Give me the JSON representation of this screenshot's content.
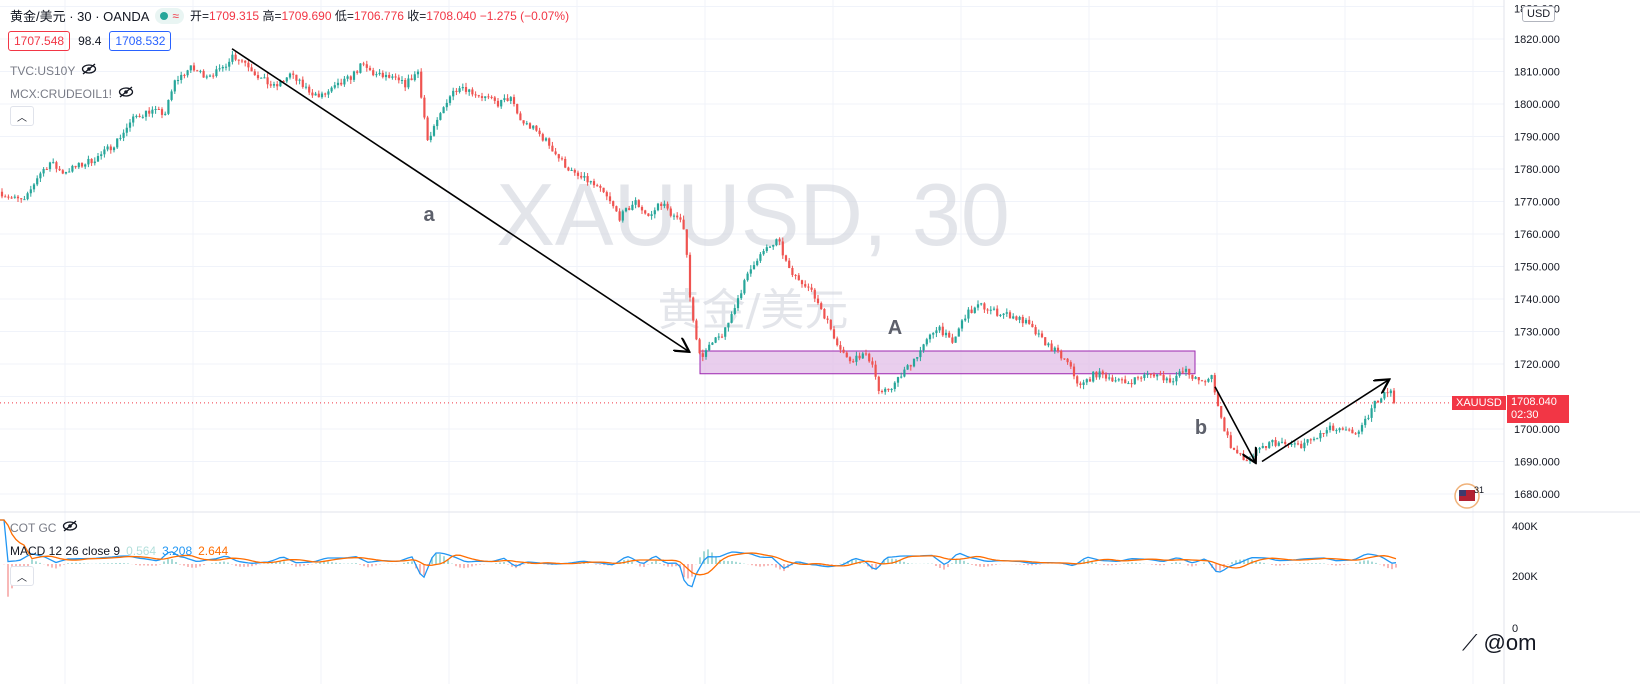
{
  "legend": {
    "symbol": "黄金/美元 · 30 · OANDA",
    "pill_glyph": "≈",
    "o_label": "开=",
    "o_value": "1709.315",
    "h_label": "高=",
    "h_value": "1709.690",
    "l_label": "低=",
    "l_value": "1706.776",
    "c_label": "收=",
    "c_value": "1708.040",
    "change": "−1.275 (−0.07%)"
  },
  "bid": "1707.548",
  "spread": "98.4",
  "ask": "1708.532",
  "indicators": [
    "TVC:US10Y",
    "MCX:CRUDEOIL1!"
  ],
  "currency": "USD",
  "price_axis": {
    "ticks": [
      "1820.000",
      "1810.000",
      "1800.000",
      "1790.000",
      "1780.000",
      "1770.000",
      "1760.000",
      "1750.000",
      "1740.000",
      "1730.000",
      "1720.000",
      "1700.000",
      "1690.000",
      "1680.000"
    ],
    "top_partial": "1830.000"
  },
  "last_price": {
    "symbol": "XAUUSD",
    "value": "1708.040",
    "countdown": "02:30"
  },
  "watermark": {
    "main": "XAUUSD, 30",
    "sub": "黄金/美元"
  },
  "annotations": {
    "a": "a",
    "A": "A",
    "b": "b"
  },
  "lower_pane": {
    "cot": "COT GC",
    "macd_label": "MACD 12 26 close 9",
    "macd_v1": "0.564",
    "macd_v2": "3.208",
    "macd_v3": "2.644",
    "ticks": [
      "400K",
      "200K",
      "0"
    ]
  },
  "earnings_badge": "31",
  "brand": "@om",
  "colors": {
    "up": "#26a69a",
    "down": "#ef5350",
    "zone_fill": "#e1bee7",
    "zone_stroke": "#9c27b0",
    "macd": "#2196f3",
    "signal": "#ff6d00"
  },
  "chart_data": {
    "type": "candlestick",
    "symbol": "XAUUSD",
    "timeframe": "30",
    "ylim": [
      1676,
      1831
    ],
    "path_points": [
      [
        0,
        1773
      ],
      [
        12,
        1771
      ],
      [
        25,
        1770
      ],
      [
        38,
        1778
      ],
      [
        50,
        1782
      ],
      [
        62,
        1779
      ],
      [
        80,
        1781
      ],
      [
        100,
        1784
      ],
      [
        115,
        1788
      ],
      [
        135,
        1796
      ],
      [
        150,
        1798
      ],
      [
        165,
        1797
      ],
      [
        175,
        1807
      ],
      [
        190,
        1811
      ],
      [
        205,
        1809
      ],
      [
        220,
        1810
      ],
      [
        232,
        1815
      ],
      [
        245,
        1813
      ],
      [
        260,
        1808
      ],
      [
        275,
        1805
      ],
      [
        290,
        1809
      ],
      [
        305,
        1805
      ],
      [
        320,
        1802
      ],
      [
        335,
        1805
      ],
      [
        350,
        1808
      ],
      [
        362,
        1812
      ],
      [
        375,
        1809
      ],
      [
        390,
        1808
      ],
      [
        405,
        1806
      ],
      [
        418,
        1810
      ],
      [
        428,
        1788
      ],
      [
        438,
        1795
      ],
      [
        448,
        1802
      ],
      [
        460,
        1806
      ],
      [
        470,
        1804
      ],
      [
        485,
        1802
      ],
      [
        498,
        1800
      ],
      [
        510,
        1802
      ],
      [
        520,
        1795
      ],
      [
        535,
        1792
      ],
      [
        548,
        1788
      ],
      [
        560,
        1783
      ],
      [
        575,
        1778
      ],
      [
        590,
        1776
      ],
      [
        605,
        1772
      ],
      [
        620,
        1765
      ],
      [
        635,
        1770
      ],
      [
        650,
        1765
      ],
      [
        660,
        1770
      ],
      [
        672,
        1766
      ],
      [
        685,
        1762
      ],
      [
        690,
        1740
      ],
      [
        700,
        1722
      ],
      [
        712,
        1726
      ],
      [
        725,
        1730
      ],
      [
        740,
        1742
      ],
      [
        755,
        1752
      ],
      [
        770,
        1756
      ],
      [
        778,
        1758
      ],
      [
        790,
        1748
      ],
      [
        805,
        1745
      ],
      [
        820,
        1738
      ],
      [
        835,
        1728
      ],
      [
        848,
        1721
      ],
      [
        862,
        1723
      ],
      [
        872,
        1721
      ],
      [
        880,
        1710
      ],
      [
        895,
        1714
      ],
      [
        910,
        1720
      ],
      [
        925,
        1726
      ],
      [
        938,
        1732
      ],
      [
        952,
        1726
      ],
      [
        965,
        1735
      ],
      [
        980,
        1738
      ],
      [
        995,
        1736
      ],
      [
        1010,
        1735
      ],
      [
        1025,
        1733
      ],
      [
        1040,
        1728
      ],
      [
        1055,
        1724
      ],
      [
        1068,
        1720
      ],
      [
        1080,
        1713
      ],
      [
        1095,
        1717
      ],
      [
        1110,
        1716
      ],
      [
        1125,
        1714
      ],
      [
        1140,
        1716
      ],
      [
        1155,
        1717
      ],
      [
        1170,
        1715
      ],
      [
        1185,
        1718
      ],
      [
        1200,
        1714
      ],
      [
        1212,
        1716
      ],
      [
        1222,
        1702
      ],
      [
        1232,
        1694
      ],
      [
        1245,
        1690
      ],
      [
        1258,
        1693
      ],
      [
        1272,
        1696
      ],
      [
        1288,
        1695
      ],
      [
        1300,
        1695
      ],
      [
        1315,
        1697
      ],
      [
        1330,
        1700
      ],
      [
        1345,
        1699
      ],
      [
        1360,
        1699
      ],
      [
        1375,
        1708
      ],
      [
        1385,
        1712
      ],
      [
        1392,
        1711
      ],
      [
        1397,
        1708.04
      ]
    ],
    "zone": {
      "x_start": 700,
      "x_end": 1195,
      "y_low": 1717,
      "y_high": 1724
    },
    "arrows": [
      {
        "label": "a",
        "from": [
          232,
          1817
        ],
        "to": [
          688,
          1724
        ]
      },
      {
        "label": "b",
        "from": [
          1215,
          1713
        ],
        "to": [
          1255,
          1690
        ]
      },
      {
        "label": "",
        "from": [
          1262,
          1690
        ],
        "to": [
          1388,
          1715
        ]
      }
    ],
    "last_price_line": 1708.04
  }
}
